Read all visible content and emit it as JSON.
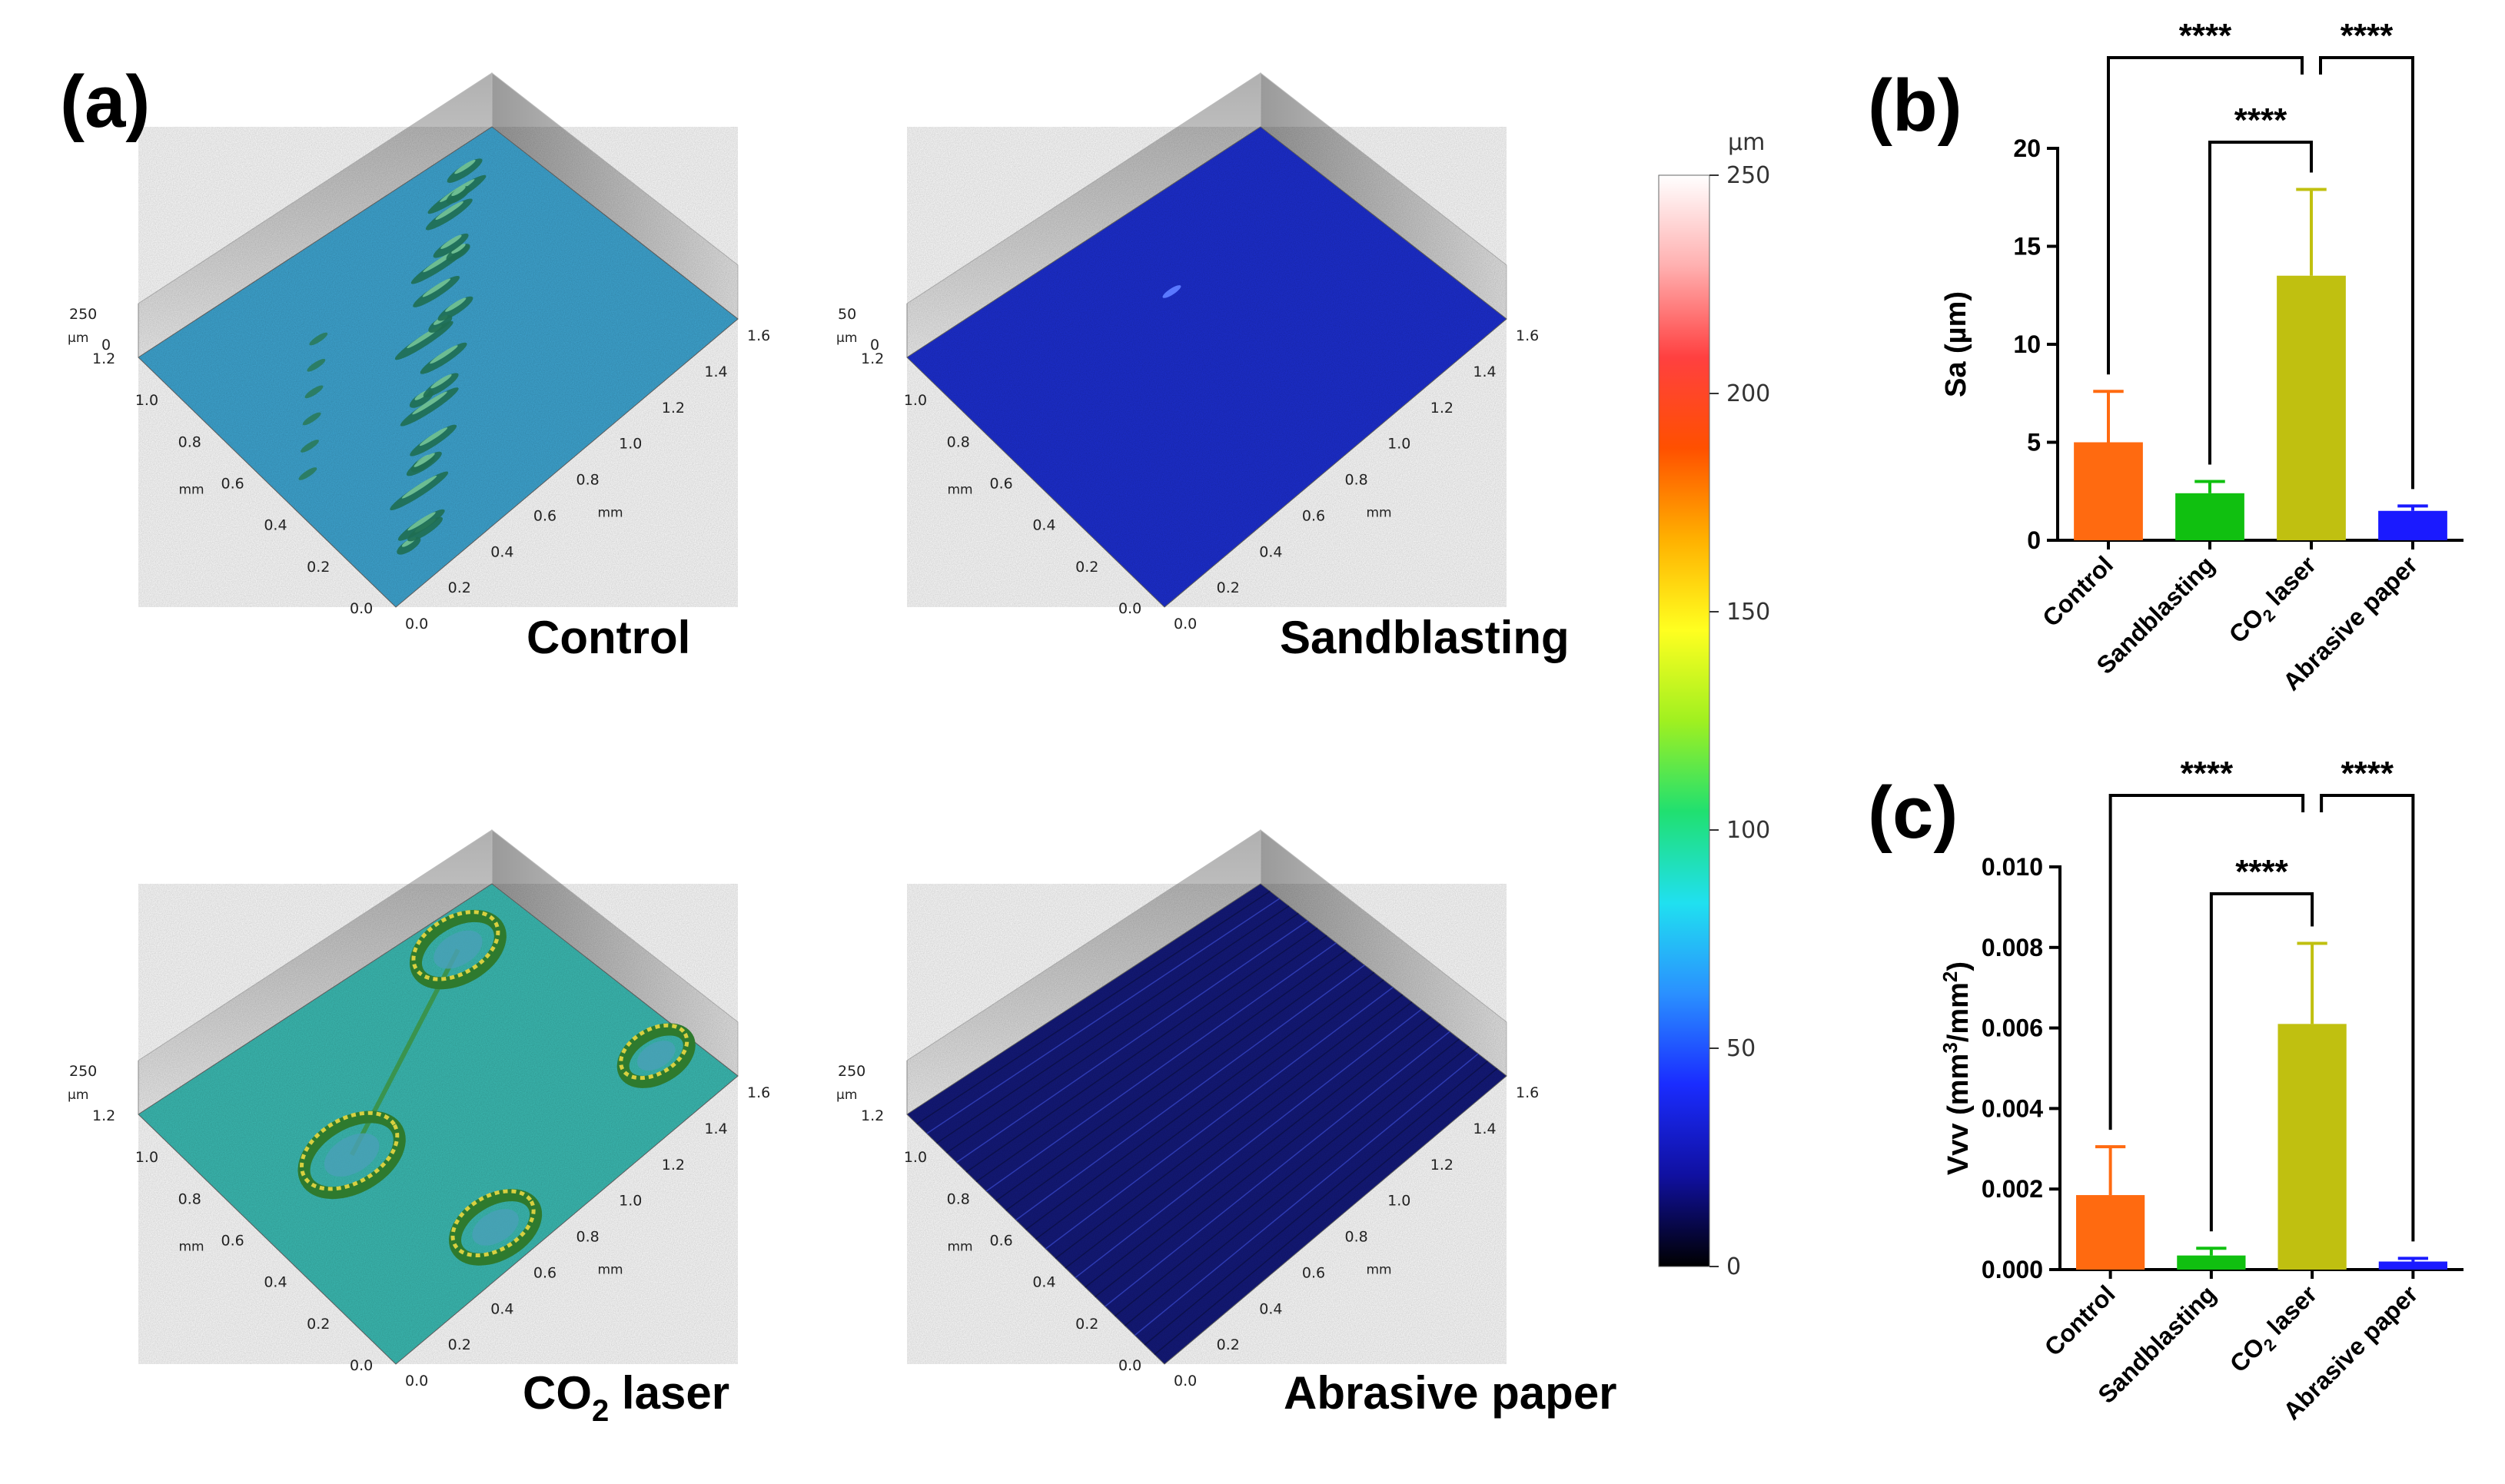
{
  "figure": {
    "panel_a_letter": "(a)",
    "panel_b_letter": "(b)",
    "panel_c_letter": "(c)"
  },
  "surfaces": [
    {
      "title": "Control",
      "z_top": "250",
      "z_zero": "0",
      "z_unit": "µm",
      "y_ticks": [
        "1.2",
        "1.0",
        "0.8",
        "0.6",
        "0.4",
        "0.2",
        "0.0"
      ],
      "x_ticks": [
        "0.0",
        "0.2",
        "0.4",
        "0.6",
        "0.8",
        "1.0",
        "1.2",
        "1.4",
        "1.6"
      ],
      "y_unit": "mm",
      "x_unit": "mm",
      "base_color": "#3fa6d2",
      "feature": "scratch"
    },
    {
      "title": "Sandblasting",
      "z_top": "50",
      "z_zero": "0",
      "z_unit": "µm",
      "y_ticks": [
        "1.2",
        "1.0",
        "0.8",
        "0.6",
        "0.4",
        "0.2",
        "0.0"
      ],
      "x_ticks": [
        "0.0",
        "0.2",
        "0.4",
        "0.6",
        "0.8",
        "1.0",
        "1.2",
        "1.4",
        "1.6"
      ],
      "y_unit": "mm",
      "x_unit": "mm",
      "base_color": "#1d2fd0",
      "feature": "flat"
    },
    {
      "title": "CO",
      "title_sub": "2",
      "title_rest": " laser",
      "z_top": "250",
      "z_zero": "",
      "z_unit": "µm",
      "y_ticks": [
        "1.2",
        "1.0",
        "0.8",
        "0.6",
        "0.4",
        "0.2",
        "0.0"
      ],
      "x_ticks": [
        "0.0",
        "0.2",
        "0.4",
        "0.6",
        "0.8",
        "1.0",
        "1.2",
        "1.4",
        "1.6"
      ],
      "y_unit": "mm",
      "x_unit": "mm",
      "base_color": "#3cbcb4",
      "feature": "laser"
    },
    {
      "title": "Abrasive paper",
      "z_top": "250",
      "z_zero": "",
      "z_unit": "µm",
      "y_ticks": [
        "1.2",
        "1.0",
        "0.8",
        "0.6",
        "0.4",
        "0.2",
        "0.0"
      ],
      "x_ticks": [
        "0.0",
        "0.2",
        "0.4",
        "0.6",
        "0.8",
        "1.0",
        "1.2",
        "1.4",
        "1.6"
      ],
      "y_unit": "mm",
      "x_unit": "mm",
      "base_color": "#141a7a",
      "feature": "grooves"
    }
  ],
  "colorbar": {
    "unit": "µm",
    "min": 0,
    "max": 250,
    "ticks": [
      "0",
      "50",
      "100",
      "150",
      "200",
      "250"
    ],
    "colormap": [
      "#000000",
      "#1010a0",
      "#1a2cff",
      "#2a90ff",
      "#20e0f0",
      "#20e070",
      "#a0f020",
      "#ffff20",
      "#ffb000",
      "#ff5000",
      "#ff4040",
      "#ffb0b0",
      "#ffffff"
    ]
  },
  "chart_data": [
    {
      "type": "bar",
      "panel": "(b)",
      "categories": [
        "Control",
        "Sandblasting",
        "CO2 laser",
        "Abrasive paper"
      ],
      "category_labels": [
        {
          "main": "Control",
          "sub": "",
          "rest": ""
        },
        {
          "main": "Sandblasting",
          "sub": "",
          "rest": ""
        },
        {
          "main": "CO",
          "sub": "2",
          "rest": " laser"
        },
        {
          "main": "Abrasive paper",
          "sub": "",
          "rest": ""
        }
      ],
      "values": [
        5.0,
        2.4,
        13.5,
        1.5
      ],
      "errors": [
        2.6,
        0.6,
        4.4,
        0.25
      ],
      "colors": [
        "#ff6a10",
        "#10c010",
        "#c0c010",
        "#1a1aff"
      ],
      "ylabel": "Sa (µm)",
      "ylim": [
        0,
        20
      ],
      "yticks": [
        "0",
        "5",
        "10",
        "15",
        "20"
      ],
      "ytick_values": [
        0,
        5,
        10,
        15,
        20
      ],
      "significance": [
        {
          "from": 0,
          "to": 2,
          "label": "****",
          "level": 0
        },
        {
          "from": 2,
          "to": 3,
          "label": "****",
          "level": 0
        },
        {
          "from": 1,
          "to": 2,
          "label": "****",
          "level": 1
        }
      ]
    },
    {
      "type": "bar",
      "panel": "(c)",
      "categories": [
        "Control",
        "Sandblasting",
        "CO2 laser",
        "Abrasive paper"
      ],
      "category_labels": [
        {
          "main": "Control",
          "sub": "",
          "rest": ""
        },
        {
          "main": "Sandblasting",
          "sub": "",
          "rest": ""
        },
        {
          "main": "CO",
          "sub": "2",
          "rest": " laser"
        },
        {
          "main": "Abrasive paper",
          "sub": "",
          "rest": ""
        }
      ],
      "values": [
        0.00185,
        0.00035,
        0.0061,
        0.0002
      ],
      "errors": [
        0.0012,
        0.00018,
        0.002,
        8e-05
      ],
      "colors": [
        "#ff6a10",
        "#10c010",
        "#c0c010",
        "#1a1aff"
      ],
      "ylabel": "Vvv (mm3/mm2)",
      "ylabel_parts": {
        "a": "Vvv (mm",
        "s1": "3",
        "b": "/mm",
        "s2": "2",
        "c": ")"
      },
      "ylim": [
        0,
        0.01
      ],
      "yticks": [
        "0.000",
        "0.002",
        "0.004",
        "0.006",
        "0.008",
        "0.010"
      ],
      "ytick_values": [
        0,
        0.002,
        0.004,
        0.006,
        0.008,
        0.01
      ],
      "significance": [
        {
          "from": 0,
          "to": 2,
          "label": "****",
          "level": 0
        },
        {
          "from": 2,
          "to": 3,
          "label": "****",
          "level": 0
        },
        {
          "from": 1,
          "to": 2,
          "label": "****",
          "level": 1
        }
      ]
    }
  ]
}
